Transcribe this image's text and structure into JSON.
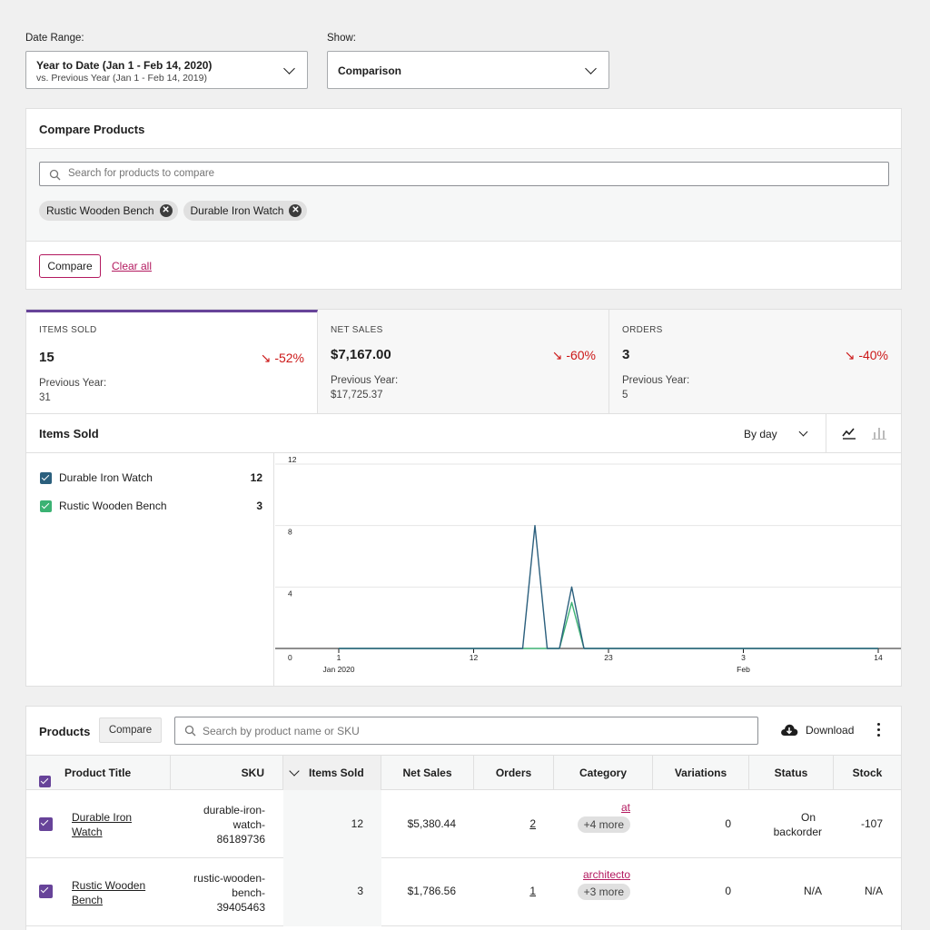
{
  "filters": {
    "date_range_label": "Date Range:",
    "date_range_main": "Year to Date (Jan 1 - Feb 14, 2020)",
    "date_range_sub": "vs. Previous Year (Jan 1 - Feb 14, 2019)",
    "show_label": "Show:",
    "show_value": "Comparison"
  },
  "compare_products": {
    "title": "Compare Products",
    "search_placeholder": "Search for products to compare",
    "selected": [
      "Rustic Wooden Bench",
      "Durable Iron Watch"
    ],
    "compare_button": "Compare",
    "clear_all": "Clear all"
  },
  "summary": [
    {
      "label": "ITEMS SOLD",
      "value": "15",
      "delta": "-52%",
      "prev_label": "Previous Year:",
      "prev_value": "31"
    },
    {
      "label": "NET SALES",
      "value": "$7,167.00",
      "delta": "-60%",
      "prev_label": "Previous Year:",
      "prev_value": "$17,725.37"
    },
    {
      "label": "ORDERS",
      "value": "3",
      "delta": "-40%",
      "prev_label": "Previous Year:",
      "prev_value": "5"
    }
  ],
  "chart_panel": {
    "title": "Items Sold",
    "interval": "By day",
    "legend": [
      {
        "name": "Durable Iron Watch",
        "value": "12",
        "color": "#2b5f7d"
      },
      {
        "name": "Rustic Wooden Bench",
        "value": "3",
        "color": "#3bb273"
      }
    ]
  },
  "chart_data": {
    "type": "line",
    "y_ticks": [
      "12",
      "8",
      "4",
      "0"
    ],
    "ylim": [
      0,
      12
    ],
    "x_ticks": [
      {
        "label": "1",
        "sub": "Jan 2020",
        "day": 1
      },
      {
        "label": "12",
        "sub": "",
        "day": 12
      },
      {
        "label": "23",
        "sub": "",
        "day": 23
      },
      {
        "label": "3",
        "sub": "Feb",
        "day": 34
      },
      {
        "label": "14",
        "sub": "",
        "day": 45
      }
    ],
    "series": [
      {
        "name": "Durable Iron Watch",
        "color": "#2b5f7d",
        "points": [
          [
            1,
            0
          ],
          [
            16,
            0
          ],
          [
            17,
            8
          ],
          [
            18,
            0
          ],
          [
            19,
            0
          ],
          [
            20,
            4
          ],
          [
            21,
            0
          ],
          [
            45,
            0
          ]
        ]
      },
      {
        "name": "Rustic Wooden Bench",
        "color": "#3bb273",
        "points": [
          [
            1,
            0
          ],
          [
            16,
            0
          ],
          [
            17,
            0
          ],
          [
            18,
            0
          ],
          [
            19,
            0
          ],
          [
            20,
            3
          ],
          [
            21,
            0
          ],
          [
            45,
            0
          ]
        ]
      }
    ]
  },
  "products": {
    "title": "Products",
    "compare_button": "Compare",
    "search_placeholder": "Search by product name or SKU",
    "download_label": "Download",
    "columns": [
      "Product Title",
      "SKU",
      "Items Sold",
      "Net Sales",
      "Orders",
      "Category",
      "Variations",
      "Status",
      "Stock"
    ],
    "rows": [
      {
        "title_1": "Durable Iron",
        "title_2": "Watch",
        "sku_1": "durable-iron-",
        "sku_2": "watch-",
        "sku_3": "86189736",
        "items_sold": "12",
        "net_sales": "$5,380.44",
        "orders": "2",
        "category": "at",
        "category_more": "+4 more",
        "variations": "0",
        "status_1": "On",
        "status_2": "backorder",
        "stock": "-107"
      },
      {
        "title_1": "Rustic Wooden",
        "title_2": "Bench",
        "sku_1": "rustic-wooden-",
        "sku_2": "bench-",
        "sku_3": "39405463",
        "items_sold": "3",
        "net_sales": "$1,786.56",
        "orders": "1",
        "category": "architecto",
        "category_more": "+3 more",
        "variations": "0",
        "status_1": "N/A",
        "status_2": "",
        "stock": "N/A"
      }
    ]
  }
}
